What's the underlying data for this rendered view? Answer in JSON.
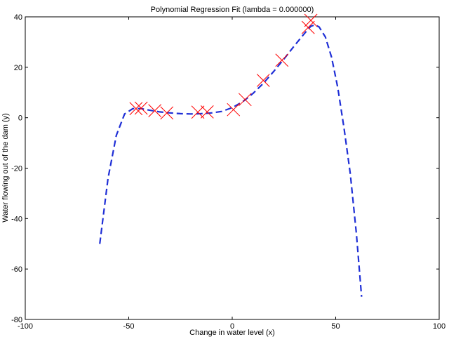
{
  "chart_data": {
    "type": "scatter",
    "title": "Polynomial Regression Fit (lambda = 0.000000)",
    "xlabel": "Change in water level (x)",
    "ylabel": "Water flowing out of the dam (y)",
    "xlim": [
      -100,
      100
    ],
    "ylim": [
      -80,
      40
    ],
    "xticks": [
      "-100",
      "-50",
      "0",
      "50",
      "100"
    ],
    "yticks": [
      "-80",
      "-60",
      "-40",
      "-20",
      "0",
      "20",
      "40"
    ],
    "grid": false,
    "series": [
      {
        "kind": "scatter",
        "marker": "x",
        "color": "#ff0000",
        "points": [
          [
            -46.5,
            3.6
          ],
          [
            -44.0,
            3.8
          ],
          [
            -37.4,
            2.8
          ],
          [
            -31.6,
            1.9
          ],
          [
            -16.6,
            2.2
          ],
          [
            -12.1,
            2.3
          ],
          [
            0.6,
            3.2
          ],
          [
            6.2,
            7.2
          ],
          [
            15.0,
            14.8
          ],
          [
            24.0,
            22.8
          ],
          [
            36.7,
            35.8
          ],
          [
            38.0,
            38.6
          ]
        ]
      },
      {
        "kind": "line",
        "style": "dashed",
        "color": "#1f2fd6",
        "points": [
          [
            -64,
            -50
          ],
          [
            -60,
            -24
          ],
          [
            -56,
            -7
          ],
          [
            -52,
            1.5
          ],
          [
            -48,
            3.6
          ],
          [
            -44,
            3.6
          ],
          [
            -40,
            3.0
          ],
          [
            -35,
            2.3
          ],
          [
            -30,
            1.9
          ],
          [
            -25,
            1.6
          ],
          [
            -20,
            1.5
          ],
          [
            -15,
            1.6
          ],
          [
            -10,
            1.9
          ],
          [
            -5,
            2.5
          ],
          [
            0,
            4.0
          ],
          [
            5,
            6.3
          ],
          [
            10,
            9.6
          ],
          [
            15,
            13.6
          ],
          [
            20,
            18.3
          ],
          [
            25,
            23.3
          ],
          [
            30,
            28.5
          ],
          [
            35,
            33.5
          ],
          [
            38,
            36.3
          ],
          [
            40,
            36.8
          ],
          [
            42,
            36.0
          ],
          [
            45,
            32.0
          ],
          [
            48,
            24.0
          ],
          [
            51,
            12.0
          ],
          [
            54,
            -4.0
          ],
          [
            57,
            -22.0
          ],
          [
            60,
            -46.0
          ],
          [
            62.5,
            -71.0
          ]
        ]
      }
    ]
  }
}
